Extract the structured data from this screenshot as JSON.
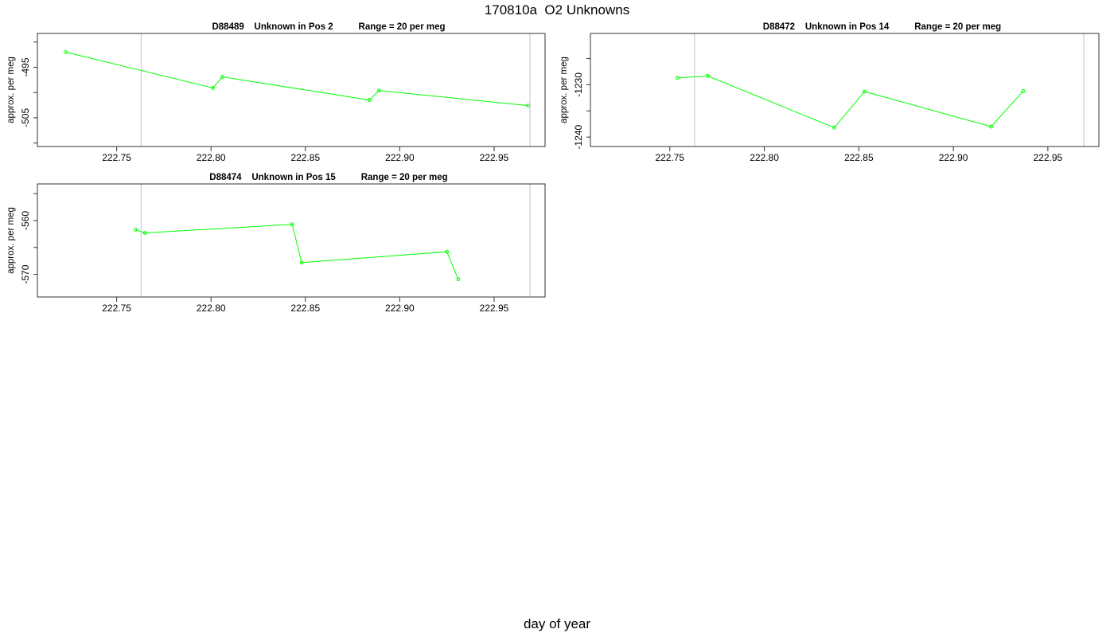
{
  "title": "170810a  O2 Unknowns",
  "xlabel": "day of year",
  "chart_data": [
    {
      "type": "line",
      "title": "D88489    Unknown in Pos 2          Range = 20 per meg",
      "ylabel": "approx. per meg",
      "xlim": [
        222.708,
        222.977
      ],
      "ylim": [
        -510.7,
        -488.3
      ],
      "xticks": [
        "222.75",
        "222.80",
        "222.85",
        "222.90",
        "222.95"
      ],
      "yticks": [
        "-495",
        "-505"
      ],
      "vlines": [
        222.763,
        222.969
      ],
      "series": [
        {
          "color": "#00ff00",
          "x": [
            222.723,
            222.801,
            222.806,
            222.884,
            222.889,
            222.968
          ],
          "y": [
            -492.0,
            -499.1,
            -496.9,
            -501.5,
            -499.6,
            -502.6
          ]
        }
      ]
    },
    {
      "type": "line",
      "title": "D88472    Unknown in Pos 14          Range = 20 per meg",
      "ylabel": "approx. per meg",
      "xlim": [
        222.708,
        222.977
      ],
      "ylim": [
        -1241.8,
        -1220.2
      ],
      "xticks": [
        "222.75",
        "222.80",
        "222.85",
        "222.90",
        "222.95"
      ],
      "yticks": [
        "-1230",
        "-1240"
      ],
      "vlines": [
        222.763,
        222.969
      ],
      "series": [
        {
          "color": "#00ff00",
          "x": [
            222.754,
            222.77,
            222.837,
            222.853,
            222.92,
            222.937
          ],
          "y": [
            -1228.7,
            -1228.3,
            -1238.2,
            -1231.3,
            -1238.0,
            -1231.2
          ]
        }
      ]
    },
    {
      "type": "line",
      "title": "D88474    Unknown in Pos 15          Range = 20 per meg",
      "ylabel": "approx. per meg",
      "xlim": [
        222.708,
        222.977
      ],
      "ylim": [
        -574.2,
        -553.2
      ],
      "xticks": [
        "222.75",
        "222.80",
        "222.85",
        "222.90",
        "222.95"
      ],
      "yticks": [
        "-560",
        "-570"
      ],
      "vlines": [
        222.763,
        222.969
      ],
      "series": [
        {
          "color": "#00ff00",
          "x": [
            222.76,
            222.765,
            222.843,
            222.848,
            222.925,
            222.931
          ],
          "y": [
            -561.7,
            -562.3,
            -560.7,
            -567.8,
            -565.8,
            -570.9
          ]
        }
      ]
    }
  ]
}
